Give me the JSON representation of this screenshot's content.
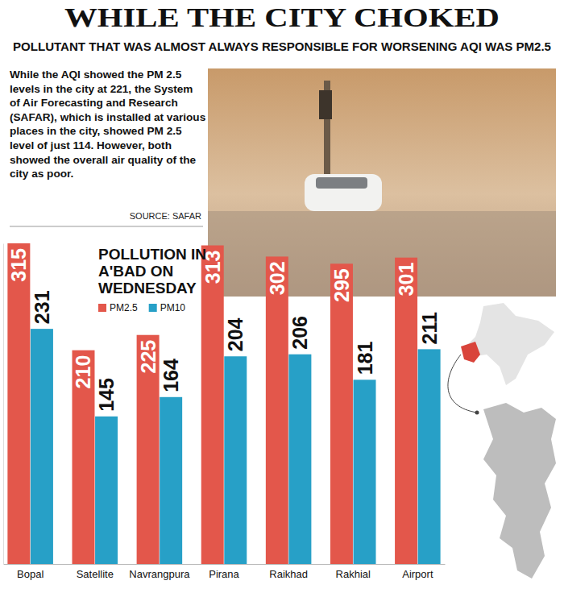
{
  "header": {
    "title": "WHILE THE CITY CHOKED",
    "subtitle": "POLLUTANT THAT WAS ALMOST ALWAYS RESPONSIBLE FOR WORSENING AQI WAS PM2.5"
  },
  "blurb": {
    "text": "While the AQI showed the PM 2.5 levels in the city at 221, the System of Air Forecasting and Research (SAFAR), which is installed at various places in the city,  showed PM 2.5 level of just 114. However, both showed the overall air quality of the city as poor.",
    "source": "SOURCE: SAFAR"
  },
  "chart_data": {
    "type": "bar",
    "title": "POLLUTION IN A'BAD ON WEDNESDAY",
    "categories": [
      "Bopal",
      "Satellite",
      "Navrangpura",
      "Pirana",
      "Raikhad",
      "Rakhial",
      "Airport"
    ],
    "series": [
      {
        "name": "PM2.5",
        "color": "#e3574b",
        "values": [
          315,
          210,
          225,
          313,
          302,
          295,
          301
        ]
      },
      {
        "name": "PM10",
        "color": "#27a0c7",
        "values": [
          231,
          145,
          164,
          204,
          206,
          181,
          211
        ]
      }
    ],
    "ylim": [
      0,
      315
    ],
    "yticks": [],
    "grid": false,
    "legend": "top-left",
    "data_labels": true,
    "tick_labels": "x"
  }
}
